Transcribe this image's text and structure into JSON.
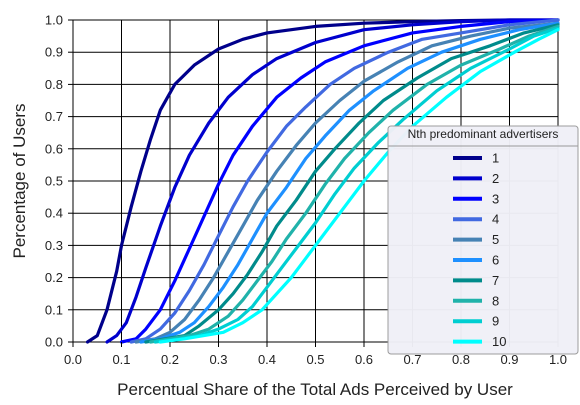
{
  "chart_data": {
    "type": "line",
    "title": "",
    "xlabel": "Percentual Share of the Total Ads Perceived by User",
    "ylabel": "Percentage of Users",
    "xlim": [
      0.0,
      1.0
    ],
    "ylim": [
      0.0,
      1.0
    ],
    "x_ticks": [
      "0.0",
      "0.1",
      "0.2",
      "0.3",
      "0.4",
      "0.5",
      "0.6",
      "0.7",
      "0.8",
      "0.9",
      "1.0"
    ],
    "y_ticks": [
      "0.0",
      "0.1",
      "0.2",
      "0.3",
      "0.4",
      "0.5",
      "0.6",
      "0.7",
      "0.8",
      "0.9",
      "1.0"
    ],
    "grid": true,
    "legend": {
      "title": "Nth predominant advertisers",
      "placement": "center-right"
    },
    "series": [
      {
        "name": "1",
        "color": "#00008b",
        "x": [
          0.03,
          0.05,
          0.07,
          0.09,
          0.1,
          0.12,
          0.14,
          0.16,
          0.18,
          0.21,
          0.25,
          0.3,
          0.35,
          0.4,
          0.5,
          0.6,
          0.7,
          0.8,
          0.9,
          1.0
        ],
        "y": [
          0.0,
          0.02,
          0.1,
          0.22,
          0.3,
          0.42,
          0.53,
          0.63,
          0.72,
          0.8,
          0.86,
          0.91,
          0.94,
          0.96,
          0.98,
          0.99,
          0.995,
          0.998,
          1.0,
          1.0
        ]
      },
      {
        "name": "2",
        "color": "#0000cd",
        "x": [
          0.07,
          0.09,
          0.11,
          0.13,
          0.15,
          0.18,
          0.21,
          0.24,
          0.28,
          0.32,
          0.37,
          0.42,
          0.5,
          0.6,
          0.7,
          0.8,
          0.9,
          1.0
        ],
        "y": [
          0.0,
          0.02,
          0.06,
          0.14,
          0.23,
          0.36,
          0.48,
          0.58,
          0.68,
          0.76,
          0.83,
          0.88,
          0.93,
          0.97,
          0.985,
          0.995,
          1.0,
          1.0
        ]
      },
      {
        "name": "3",
        "color": "#0000ff",
        "x": [
          0.1,
          0.13,
          0.15,
          0.18,
          0.21,
          0.24,
          0.27,
          0.3,
          0.33,
          0.37,
          0.42,
          0.47,
          0.52,
          0.6,
          0.7,
          0.8,
          0.9,
          1.0
        ],
        "y": [
          0.0,
          0.01,
          0.04,
          0.1,
          0.19,
          0.29,
          0.39,
          0.49,
          0.58,
          0.67,
          0.76,
          0.82,
          0.87,
          0.92,
          0.96,
          0.98,
          0.995,
          1.0
        ]
      },
      {
        "name": "4",
        "color": "#4169e1",
        "x": [
          0.12,
          0.15,
          0.18,
          0.21,
          0.24,
          0.27,
          0.3,
          0.33,
          0.36,
          0.4,
          0.44,
          0.48,
          0.53,
          0.58,
          0.65,
          0.72,
          0.8,
          0.9,
          1.0
        ],
        "y": [
          0.0,
          0.01,
          0.04,
          0.09,
          0.16,
          0.24,
          0.33,
          0.42,
          0.5,
          0.59,
          0.67,
          0.73,
          0.8,
          0.85,
          0.9,
          0.94,
          0.96,
          0.985,
          1.0
        ]
      },
      {
        "name": "5",
        "color": "#4682b4",
        "x": [
          0.13,
          0.17,
          0.2,
          0.23,
          0.26,
          0.29,
          0.32,
          0.35,
          0.38,
          0.42,
          0.46,
          0.5,
          0.55,
          0.6,
          0.67,
          0.74,
          0.82,
          0.9,
          1.0
        ],
        "y": [
          0.0,
          0.01,
          0.03,
          0.07,
          0.13,
          0.2,
          0.28,
          0.36,
          0.44,
          0.53,
          0.61,
          0.68,
          0.75,
          0.81,
          0.87,
          0.92,
          0.95,
          0.975,
          0.99
        ]
      },
      {
        "name": "6",
        "color": "#1e90ff",
        "x": [
          0.14,
          0.18,
          0.22,
          0.25,
          0.28,
          0.31,
          0.34,
          0.37,
          0.4,
          0.44,
          0.48,
          0.52,
          0.57,
          0.62,
          0.69,
          0.76,
          0.84,
          0.92,
          1.0
        ],
        "y": [
          0.0,
          0.01,
          0.03,
          0.06,
          0.11,
          0.17,
          0.24,
          0.32,
          0.4,
          0.48,
          0.57,
          0.64,
          0.72,
          0.78,
          0.85,
          0.9,
          0.94,
          0.97,
          0.99
        ]
      },
      {
        "name": "7",
        "color": "#008b8b",
        "x": [
          0.15,
          0.19,
          0.23,
          0.26,
          0.3,
          0.33,
          0.36,
          0.39,
          0.42,
          0.46,
          0.5,
          0.54,
          0.59,
          0.64,
          0.71,
          0.78,
          0.86,
          0.93,
          1.0
        ],
        "y": [
          0.0,
          0.01,
          0.02,
          0.05,
          0.1,
          0.15,
          0.21,
          0.28,
          0.36,
          0.44,
          0.53,
          0.6,
          0.68,
          0.75,
          0.82,
          0.88,
          0.92,
          0.96,
          0.985
        ]
      },
      {
        "name": "8",
        "color": "#20b2aa",
        "x": [
          0.16,
          0.2,
          0.24,
          0.28,
          0.32,
          0.35,
          0.38,
          0.41,
          0.44,
          0.48,
          0.52,
          0.56,
          0.61,
          0.66,
          0.73,
          0.8,
          0.88,
          0.94,
          1.0
        ],
        "y": [
          0.0,
          0.01,
          0.02,
          0.04,
          0.08,
          0.13,
          0.19,
          0.25,
          0.32,
          0.4,
          0.49,
          0.57,
          0.65,
          0.72,
          0.8,
          0.86,
          0.91,
          0.95,
          0.98
        ]
      },
      {
        "name": "9",
        "color": "#00ced1",
        "x": [
          0.17,
          0.22,
          0.26,
          0.3,
          0.34,
          0.37,
          0.4,
          0.43,
          0.46,
          0.5,
          0.54,
          0.58,
          0.63,
          0.68,
          0.75,
          0.82,
          0.9,
          0.95,
          1.0
        ],
        "y": [
          0.0,
          0.01,
          0.02,
          0.04,
          0.07,
          0.11,
          0.17,
          0.23,
          0.29,
          0.37,
          0.46,
          0.54,
          0.62,
          0.69,
          0.78,
          0.85,
          0.91,
          0.95,
          0.975
        ]
      },
      {
        "name": "10",
        "color": "#00ffff",
        "x": [
          0.18,
          0.23,
          0.27,
          0.31,
          0.35,
          0.39,
          0.42,
          0.45,
          0.48,
          0.52,
          0.56,
          0.6,
          0.65,
          0.7,
          0.77,
          0.84,
          0.91,
          0.96,
          1.0
        ],
        "y": [
          0.0,
          0.01,
          0.02,
          0.03,
          0.06,
          0.1,
          0.15,
          0.2,
          0.26,
          0.34,
          0.42,
          0.5,
          0.59,
          0.67,
          0.76,
          0.84,
          0.9,
          0.94,
          0.97
        ]
      }
    ]
  }
}
